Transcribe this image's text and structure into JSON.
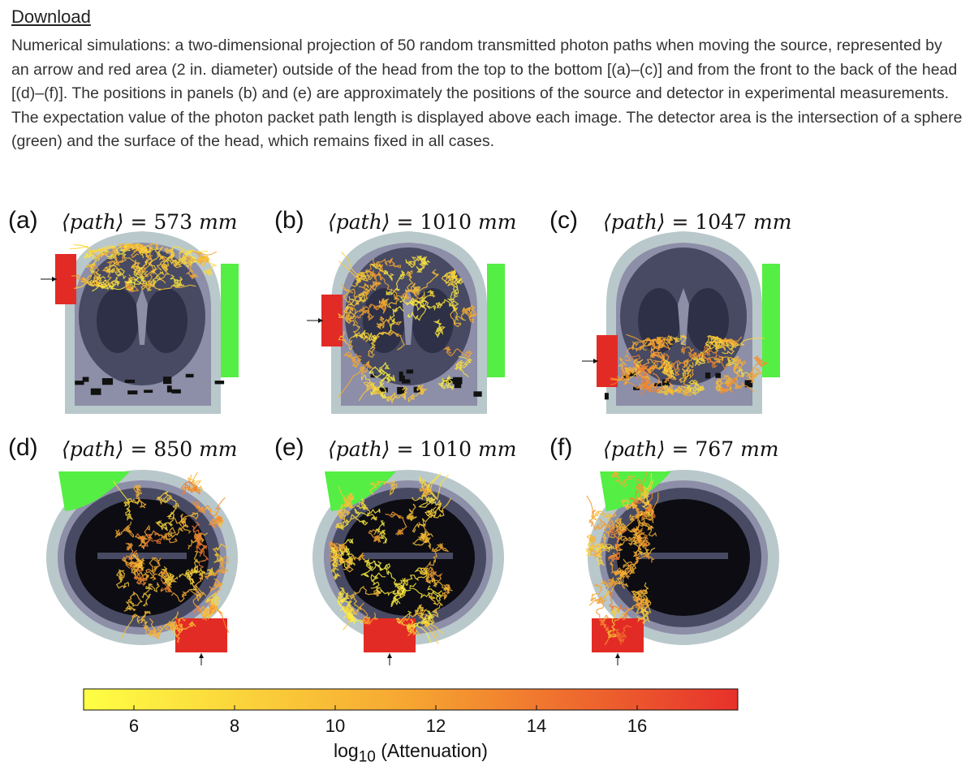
{
  "download_label": "Download",
  "caption": "Numerical simulations: a two-dimensional projection of 50 random transmitted photon paths when moving the source, represented by an arrow and red area (2 in. diameter) outside of the head from the top to the bottom [(a)–(c)] and from the front to the back of the head [(d)–(f)]. The positions in panels (b) and (e) are approximately the positions of the source and detector in experimental measurements. The expectation value of the photon packet path length is displayed above each image. The detector area is the intersection of a sphere (green) and the surface of the head, which remains fixed in all cases.",
  "panels": [
    {
      "label": "(a)",
      "var": "⟨path⟩",
      "eq": " = 573 ",
      "unit": "mm",
      "view": "coronal",
      "source": "top"
    },
    {
      "label": "(b)",
      "var": "⟨path⟩",
      "eq": " = 1010 ",
      "unit": "mm",
      "view": "coronal",
      "source": "middle"
    },
    {
      "label": "(c)",
      "var": "⟨path⟩",
      "eq": " = 1047 ",
      "unit": "mm",
      "view": "coronal",
      "source": "bottom"
    },
    {
      "label": "(d)",
      "var": "⟨path⟩",
      "eq": " = 850 ",
      "unit": "mm",
      "view": "axial",
      "source": "front"
    },
    {
      "label": "(e)",
      "var": "⟨path⟩",
      "eq": " = 1010 ",
      "unit": "mm",
      "view": "axial",
      "source": "middle"
    },
    {
      "label": "(f)",
      "var": "⟨path⟩",
      "eq": " = 767 ",
      "unit": "mm",
      "view": "axial",
      "source": "back"
    }
  ],
  "colorbar": {
    "min": 5,
    "max": 18,
    "ticks": [
      6,
      8,
      10,
      12,
      14,
      16
    ],
    "label_prefix": "log",
    "label_sub": "10",
    "label_suffix": " (Attenuation)",
    "color_low": "#ffff44",
    "color_mid": "#f6a531",
    "color_high": "#e7312b"
  },
  "colors": {
    "source": "#e32b25",
    "detector": "#55ee44",
    "scalp": "#b9c8cb",
    "tissue": "#8d8ea7",
    "grey_matter": "#474a62",
    "white_matter": "#2d3046"
  }
}
